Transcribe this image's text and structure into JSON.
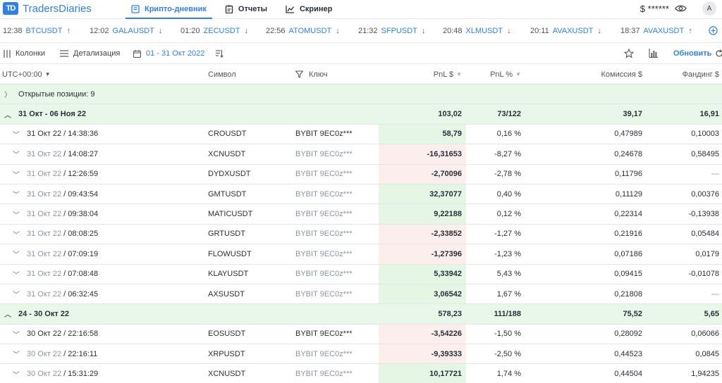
{
  "app": {
    "name": "TradersDiaries",
    "logo_mark": "TD"
  },
  "nav": [
    {
      "label": "Крипто-дневник",
      "active": true,
      "icon": "journal-icon"
    },
    {
      "label": "Отчеты",
      "active": false,
      "icon": "report-icon"
    },
    {
      "label": "Скринер",
      "active": false,
      "icon": "chart-line-icon"
    }
  ],
  "header": {
    "balance": "$ ******",
    "avatar": "A"
  },
  "ticker": [
    {
      "time": "12:38",
      "symbol": "BTCUSDT",
      "dir": "up"
    },
    {
      "time": "12:02",
      "symbol": "GALAUSDT",
      "dir": "down"
    },
    {
      "time": "01:20",
      "symbol": "ZECUSDT",
      "dir": "down"
    },
    {
      "time": "22:56",
      "symbol": "ATOMUSDT",
      "dir": "down"
    },
    {
      "time": "21:32",
      "symbol": "SFPUSDT",
      "dir": "down"
    },
    {
      "time": "20:48",
      "symbol": "XLMUSDT",
      "dir": "down"
    },
    {
      "time": "20:11",
      "symbol": "AVAXUSDT",
      "dir": "down"
    },
    {
      "time": "18:37",
      "symbol": "AVAXUSDT",
      "dir": "up"
    }
  ],
  "toolbar": {
    "columns": "Колонки",
    "detail": "Детализация",
    "date_range": "01 - 31 Окт 2022",
    "refresh": "Обновить"
  },
  "table": {
    "headers": {
      "date": "UTC+00:00",
      "symbol": "Символ",
      "key": "Ключ",
      "pnl": "PnL $",
      "pnl_pct": "PnL %",
      "commission": "Комиссия $",
      "funding": "Фандинг $"
    },
    "open_positions": "Открытые позиции: 9",
    "groups": [
      {
        "label": "31 Окт - 06 Ноя 22",
        "pnl": "103,02",
        "pct": "73/122",
        "commission": "39,17",
        "funding": "16,91",
        "rows": [
          {
            "date": "31 Окт 22",
            "time": "14:38:36",
            "dim": false,
            "symbol": "CROUSDT",
            "key": "BYBIT 9EC0z***",
            "pnl": "58,79",
            "pos": true,
            "pct": "0,16 %",
            "commission": "0,47989",
            "funding": "0,10003"
          },
          {
            "date": "31 Окт 22",
            "time": "14:08:27",
            "dim": true,
            "symbol": "XCNUSDT",
            "key": "BYBIT 9EC0z***",
            "pnl": "-16,31653",
            "pos": false,
            "pct": "-8,27 %",
            "commission": "0,24678",
            "funding": "0,58495"
          },
          {
            "date": "31 Окт 22",
            "time": "12:26:59",
            "dim": true,
            "symbol": "DYDXUSDT",
            "key": "BYBIT 9EC0z***",
            "pnl": "-2,70096",
            "pos": false,
            "pct": "-2,78 %",
            "commission": "0,11796",
            "funding": "—"
          },
          {
            "date": "31 Окт 22",
            "time": "09:43:54",
            "dim": true,
            "symbol": "GMTUSDT",
            "key": "BYBIT 9EC0z***",
            "pnl": "32,37077",
            "pos": true,
            "pct": "0,40 %",
            "commission": "0,11129",
            "funding": "0,00376"
          },
          {
            "date": "31 Окт 22",
            "time": "09:38:04",
            "dim": true,
            "symbol": "MATICUSDT",
            "key": "BYBIT 9EC0z***",
            "pnl": "9,22188",
            "pos": true,
            "pct": "0,12 %",
            "commission": "0,22314",
            "funding": "-0,13938"
          },
          {
            "date": "31 Окт 22",
            "time": "08:08:25",
            "dim": true,
            "symbol": "GRTUSDT",
            "key": "BYBIT 9EC0z***",
            "pnl": "-2,33852",
            "pos": false,
            "pct": "-1,27 %",
            "commission": "0,21916",
            "funding": "0,05484"
          },
          {
            "date": "31 Окт 22",
            "time": "07:09:19",
            "dim": true,
            "symbol": "FLOWUSDT",
            "key": "BYBIT 9EC0z***",
            "pnl": "-1,27396",
            "pos": false,
            "pct": "-1,23 %",
            "commission": "0,07186",
            "funding": "0,0179"
          },
          {
            "date": "31 Окт 22",
            "time": "07:08:48",
            "dim": true,
            "symbol": "KLAYUSDT",
            "key": "BYBIT 9EC0z***",
            "pnl": "5,33942",
            "pos": true,
            "pct": "5,43 %",
            "commission": "0,09415",
            "funding": "-0,01078"
          },
          {
            "date": "31 Окт 22",
            "time": "06:32:45",
            "dim": true,
            "symbol": "AXSUSDT",
            "key": "BYBIT 9EC0z***",
            "pnl": "3,06542",
            "pos": true,
            "pct": "1,67 %",
            "commission": "0,21808",
            "funding": "—"
          }
        ]
      },
      {
        "label": "24 - 30 Окт 22",
        "pnl": "578,23",
        "pct": "111/188",
        "commission": "75,52",
        "funding": "5,65",
        "rows": [
          {
            "date": "30 Окт 22",
            "time": "22:16:58",
            "dim": false,
            "symbol": "EOSUSDT",
            "key": "BYBIT 9EC0z***",
            "pnl": "-3,54226",
            "pos": false,
            "pct": "-1,50 %",
            "commission": "0,28092",
            "funding": "0,06066"
          },
          {
            "date": "30 Окт 22",
            "time": "22:16:11",
            "dim": true,
            "symbol": "XRPUSDT",
            "key": "BYBIT 9EC0z***",
            "pnl": "-9,39333",
            "pos": false,
            "pct": "-2,50 %",
            "commission": "0,44523",
            "funding": "0,0845"
          },
          {
            "date": "30 Окт 22",
            "time": "15:31:29",
            "dim": true,
            "symbol": "XCNUSDT",
            "key": "BYBIT 9EC0z***",
            "pnl": "10,17721",
            "pos": true,
            "pct": "1,74 %",
            "commission": "0,44504",
            "funding": "1,94235"
          }
        ]
      }
    ]
  }
}
